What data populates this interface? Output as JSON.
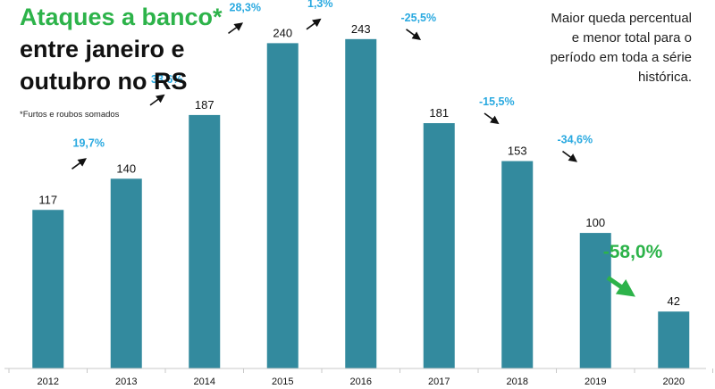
{
  "title": {
    "line1": "Ataques a banco*",
    "line2": "entre janeiro e",
    "line3": "outubro no RS"
  },
  "footnote": "*Furtos e roubos somados",
  "note": "Maior queda percentual e menor total para o período em toda a série histórica.",
  "colors": {
    "bar": "#338a9e",
    "change_label": "#29a9e0",
    "highlight": "#2db34a",
    "title_accent": "#2db34a",
    "text": "#111111"
  },
  "chart_data": {
    "type": "bar",
    "categories": [
      "2012",
      "2013",
      "2014",
      "2015",
      "2016",
      "2017",
      "2018",
      "2019",
      "2020"
    ],
    "values": [
      117,
      140,
      187,
      240,
      243,
      181,
      153,
      100,
      42
    ],
    "changes": [
      "19,7%",
      "33,6%",
      "28,3%",
      "1,3%",
      "-25,5%",
      "-15,5%",
      "-34,6%",
      "-58,0%"
    ],
    "highlight_change_index": 7,
    "xlabel": "",
    "ylabel": "",
    "ylim": [
      0,
      260
    ],
    "grid": false,
    "legend": "none"
  }
}
